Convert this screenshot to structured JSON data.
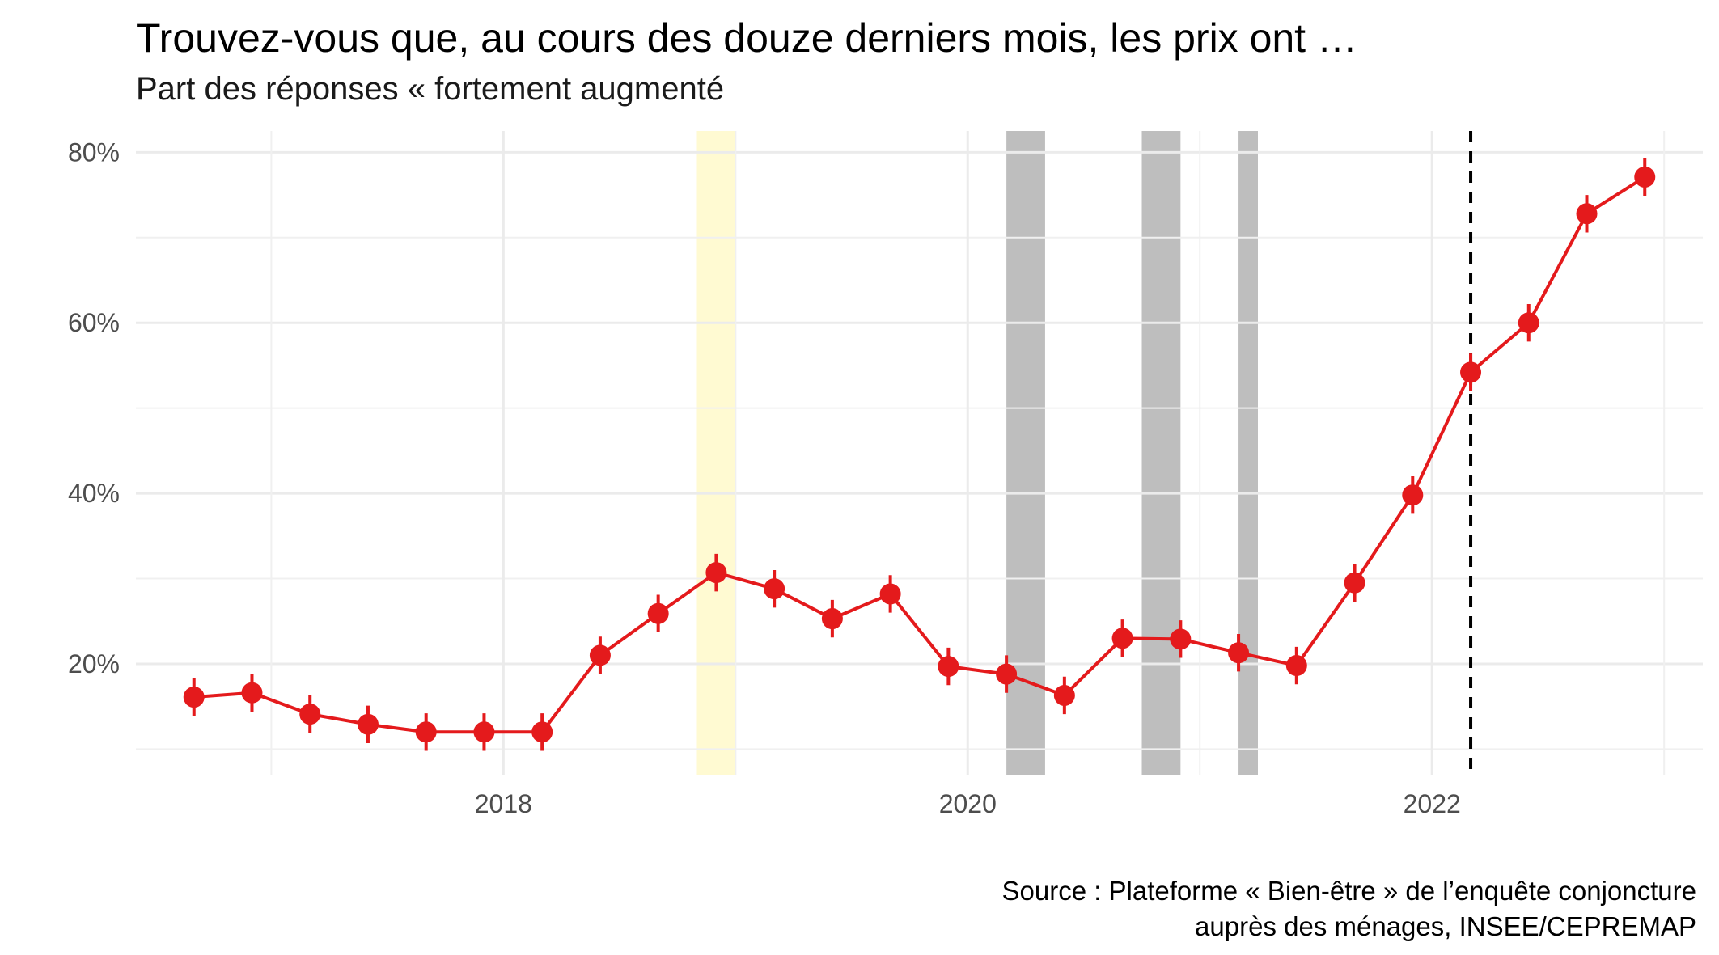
{
  "chart_data": {
    "type": "line",
    "title": "Trouvez-vous que, au cours des douze derniers mois, les prix ont …",
    "subtitle": "Part des réponses « fortement augmenté",
    "xlabel": "",
    "ylabel": "",
    "x_ticks": [
      "2018",
      "2020",
      "2022"
    ],
    "y_ticks": [
      "20%",
      "40%",
      "60%",
      "80%"
    ],
    "xlim": [
      "2016-06",
      "2023-03"
    ],
    "ylim": [
      0.07,
      0.825
    ],
    "grid": true,
    "series": [
      {
        "color": "#e41a1c",
        "x": [
          "2016-09",
          "2016-12",
          "2017-03",
          "2017-06",
          "2017-09",
          "2017-12",
          "2018-03",
          "2018-06",
          "2018-09",
          "2018-12",
          "2019-03",
          "2019-06",
          "2019-09",
          "2019-12",
          "2020-03",
          "2020-06",
          "2020-09",
          "2020-12",
          "2021-03",
          "2021-06",
          "2021-09",
          "2021-12",
          "2022-03",
          "2022-06",
          "2022-09",
          "2022-12"
        ],
        "y": [
          0.161,
          0.166,
          0.141,
          0.129,
          0.12,
          0.12,
          0.12,
          0.21,
          0.259,
          0.307,
          0.288,
          0.253,
          0.282,
          0.197,
          0.188,
          0.163,
          0.23,
          0.229,
          0.213,
          0.198,
          0.295,
          0.398,
          0.542,
          0.6,
          0.728,
          0.771
        ],
        "error": 0.022
      }
    ],
    "shaded_periods": [
      {
        "start": "2018-11",
        "end": "2019-01",
        "color": "#fffad2"
      },
      {
        "start": "2020-03",
        "end": "2020-05",
        "color": "#bebebe"
      },
      {
        "start": "2020-10",
        "end": "2020-12",
        "color": "#bebebe"
      },
      {
        "start": "2021-03",
        "end": "2021-04",
        "color": "#bebebe"
      }
    ],
    "reference_line": {
      "x": "2022-03",
      "style": "dashed",
      "color": "#000000"
    }
  },
  "source": {
    "line1": "Source : Plateforme « Bien-être » de l’enquête conjoncture",
    "line2": "auprès des ménages, INSEE/CEPREMAP"
  }
}
